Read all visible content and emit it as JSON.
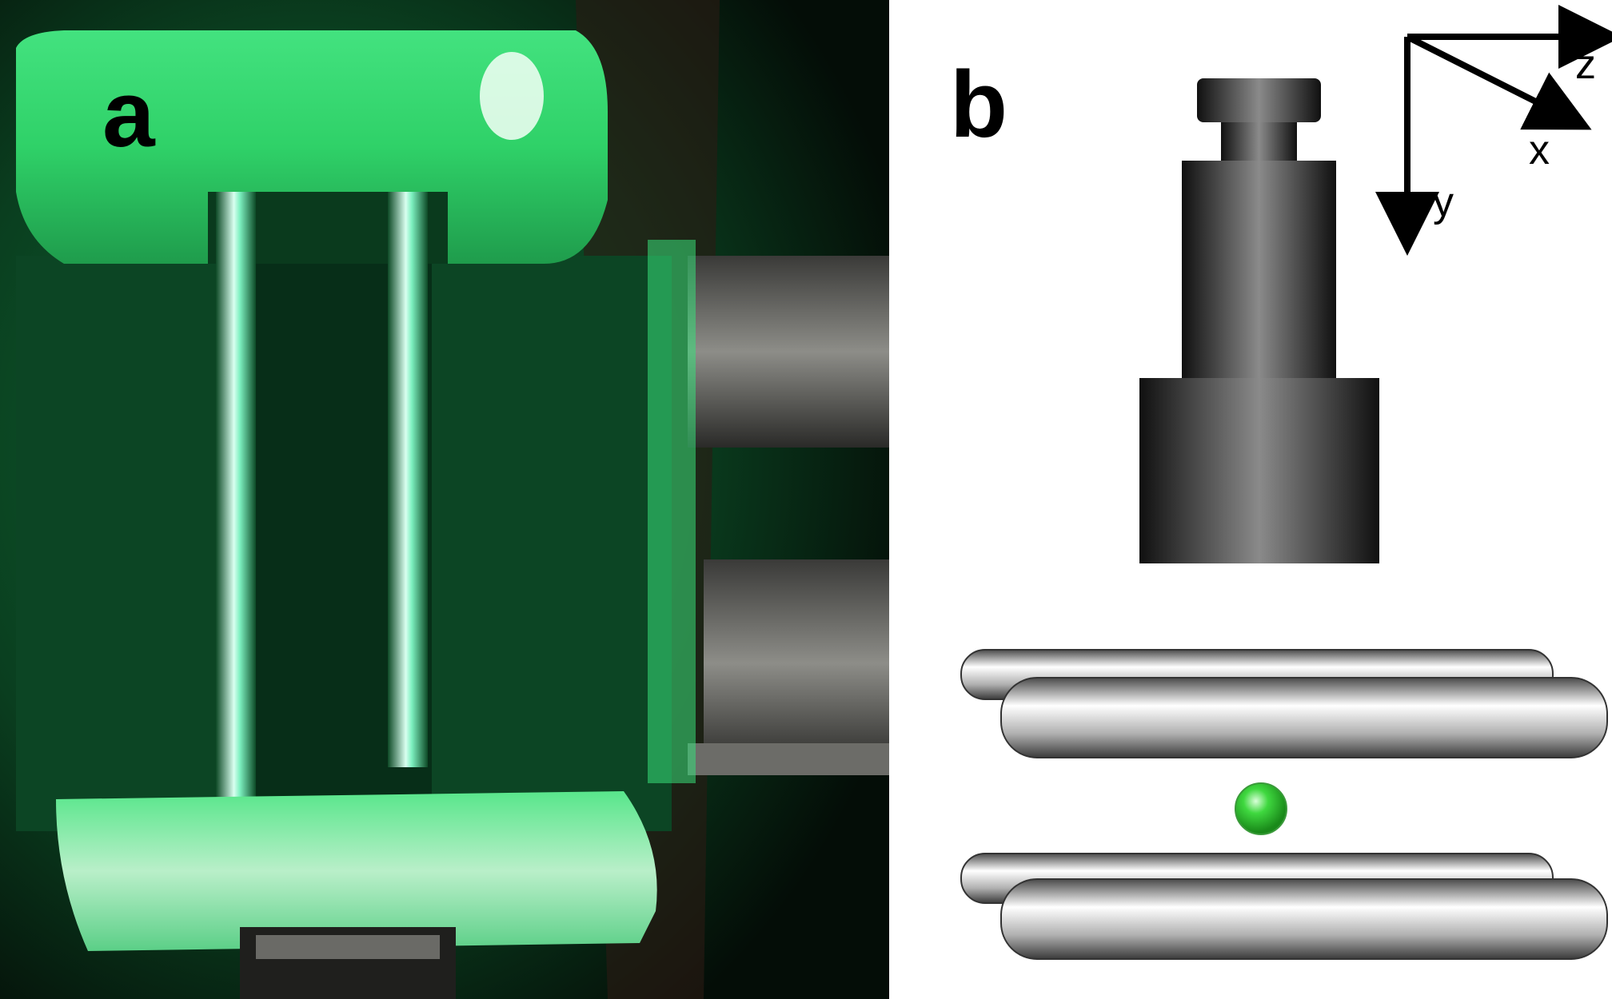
{
  "panels": {
    "a": {
      "label": "a"
    },
    "b": {
      "label": "b"
    }
  },
  "axes": {
    "z": "z",
    "x": "x",
    "y": "y"
  },
  "colors": {
    "glow": "#2fe870",
    "plastic": "#d8f5dc",
    "dark_green": "#0b3a1c",
    "objective_dark": "#1a1a1a",
    "particle": "#3fd83f"
  }
}
